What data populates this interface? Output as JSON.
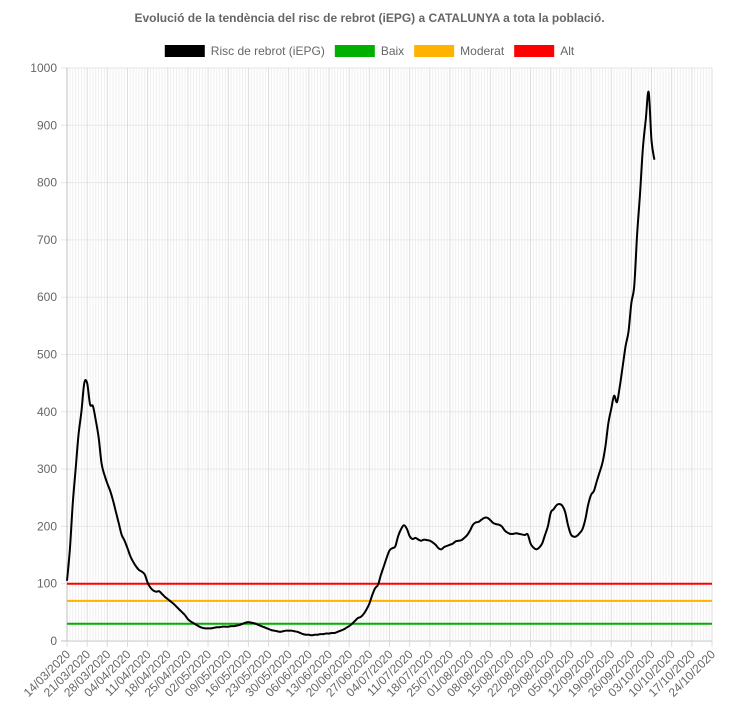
{
  "chart_data": {
    "type": "line",
    "title": "Evolució de la tendència del risc de rebrot (iEPG) a CATALUNYA a tota la població.",
    "xlabel": "",
    "ylabel": "",
    "ylim": [
      0,
      1000
    ],
    "yticks": [
      0,
      100,
      200,
      300,
      400,
      500,
      600,
      700,
      800,
      900,
      1000
    ],
    "x_tick_labels": [
      "14/03/2020",
      "21/03/2020",
      "28/03/2020",
      "04/04/2020",
      "11/04/2020",
      "18/04/2020",
      "25/04/2020",
      "02/05/2020",
      "09/05/2020",
      "16/05/2020",
      "23/05/2020",
      "30/05/2020",
      "06/06/2020",
      "13/06/2020",
      "20/06/2020",
      "27/06/2020",
      "04/07/2020",
      "11/07/2020",
      "18/07/2020",
      "25/07/2020",
      "01/08/2020",
      "08/08/2020",
      "15/08/2020",
      "22/08/2020",
      "29/08/2020",
      "05/09/2020",
      "12/09/2020",
      "19/09/2020",
      "26/09/2020",
      "03/10/2020",
      "10/10/2020",
      "17/10/2020",
      "24/10/2020"
    ],
    "x_start": "14/03/2020",
    "x_end": "24/10/2020",
    "grid": true,
    "legend_position": "top",
    "series": [
      {
        "name": "Risc de rebrot (iEPG)",
        "color": "#000000",
        "points": [
          [
            "14/03/2020",
            105
          ],
          [
            "15/03/2020",
            160
          ],
          [
            "16/03/2020",
            240
          ],
          [
            "17/03/2020",
            300
          ],
          [
            "18/03/2020",
            360
          ],
          [
            "19/03/2020",
            400
          ],
          [
            "20/03/2020",
            450
          ],
          [
            "21/03/2020",
            450
          ],
          [
            "22/03/2020",
            413
          ],
          [
            "23/03/2020",
            410
          ],
          [
            "24/03/2020",
            385
          ],
          [
            "25/03/2020",
            355
          ],
          [
            "26/03/2020",
            310
          ],
          [
            "27/03/2020",
            290
          ],
          [
            "28/03/2020",
            275
          ],
          [
            "29/03/2020",
            262
          ],
          [
            "30/03/2020",
            245
          ],
          [
            "31/03/2020",
            225
          ],
          [
            "01/04/2020",
            205
          ],
          [
            "02/04/2020",
            185
          ],
          [
            "03/04/2020",
            175
          ],
          [
            "04/04/2020",
            162
          ],
          [
            "05/04/2020",
            148
          ],
          [
            "06/04/2020",
            138
          ],
          [
            "07/04/2020",
            130
          ],
          [
            "08/04/2020",
            124
          ],
          [
            "09/04/2020",
            121
          ],
          [
            "10/04/2020",
            116
          ],
          [
            "11/04/2020",
            102
          ],
          [
            "12/04/2020",
            93
          ],
          [
            "13/04/2020",
            88
          ],
          [
            "14/04/2020",
            86
          ],
          [
            "15/04/2020",
            87
          ],
          [
            "16/04/2020",
            82
          ],
          [
            "17/04/2020",
            77
          ],
          [
            "18/04/2020",
            73
          ],
          [
            "19/04/2020",
            69
          ],
          [
            "20/04/2020",
            65
          ],
          [
            "21/04/2020",
            60
          ],
          [
            "22/04/2020",
            55
          ],
          [
            "23/04/2020",
            50
          ],
          [
            "24/04/2020",
            45
          ],
          [
            "25/04/2020",
            38
          ],
          [
            "26/04/2020",
            34
          ],
          [
            "27/04/2020",
            31
          ],
          [
            "28/04/2020",
            28
          ],
          [
            "29/04/2020",
            25
          ],
          [
            "30/04/2020",
            23
          ],
          [
            "01/05/2020",
            22
          ],
          [
            "02/05/2020",
            22
          ],
          [
            "03/05/2020",
            22
          ],
          [
            "04/05/2020",
            23
          ],
          [
            "05/05/2020",
            24
          ],
          [
            "06/05/2020",
            24
          ],
          [
            "07/05/2020",
            25
          ],
          [
            "08/05/2020",
            25
          ],
          [
            "09/05/2020",
            25
          ],
          [
            "10/05/2020",
            26
          ],
          [
            "11/05/2020",
            26
          ],
          [
            "12/05/2020",
            27
          ],
          [
            "13/05/2020",
            28
          ],
          [
            "14/05/2020",
            30
          ],
          [
            "15/05/2020",
            32
          ],
          [
            "16/05/2020",
            33
          ],
          [
            "17/05/2020",
            32
          ],
          [
            "18/05/2020",
            31
          ],
          [
            "19/05/2020",
            29
          ],
          [
            "20/05/2020",
            27
          ],
          [
            "21/05/2020",
            25
          ],
          [
            "22/05/2020",
            23
          ],
          [
            "23/05/2020",
            21
          ],
          [
            "24/05/2020",
            19
          ],
          [
            "25/05/2020",
            18
          ],
          [
            "26/05/2020",
            17
          ],
          [
            "27/05/2020",
            16
          ],
          [
            "28/05/2020",
            17
          ],
          [
            "29/05/2020",
            18
          ],
          [
            "30/05/2020",
            18
          ],
          [
            "31/05/2020",
            18
          ],
          [
            "01/06/2020",
            17
          ],
          [
            "02/06/2020",
            16
          ],
          [
            "03/06/2020",
            14
          ],
          [
            "04/06/2020",
            12
          ],
          [
            "05/06/2020",
            11
          ],
          [
            "06/06/2020",
            11
          ],
          [
            "07/06/2020",
            10
          ],
          [
            "08/06/2020",
            11
          ],
          [
            "09/06/2020",
            11
          ],
          [
            "10/06/2020",
            12
          ],
          [
            "11/06/2020",
            12
          ],
          [
            "12/06/2020",
            13
          ],
          [
            "13/06/2020",
            13
          ],
          [
            "14/06/2020",
            14
          ],
          [
            "15/06/2020",
            14
          ],
          [
            "16/06/2020",
            16
          ],
          [
            "17/06/2020",
            18
          ],
          [
            "18/06/2020",
            20
          ],
          [
            "19/06/2020",
            23
          ],
          [
            "20/06/2020",
            26
          ],
          [
            "21/06/2020",
            30
          ],
          [
            "22/06/2020",
            35
          ],
          [
            "23/06/2020",
            40
          ],
          [
            "24/06/2020",
            42
          ],
          [
            "25/06/2020",
            47
          ],
          [
            "26/06/2020",
            55
          ],
          [
            "27/06/2020",
            65
          ],
          [
            "28/06/2020",
            80
          ],
          [
            "29/06/2020",
            92
          ],
          [
            "30/06/2020",
            98
          ],
          [
            "01/07/2020",
            115
          ],
          [
            "02/07/2020",
            130
          ],
          [
            "03/07/2020",
            145
          ],
          [
            "04/07/2020",
            158
          ],
          [
            "05/07/2020",
            162
          ],
          [
            "06/07/2020",
            165
          ],
          [
            "07/07/2020",
            183
          ],
          [
            "08/07/2020",
            195
          ],
          [
            "09/07/2020",
            202
          ],
          [
            "10/07/2020",
            196
          ],
          [
            "11/07/2020",
            183
          ],
          [
            "12/07/2020",
            178
          ],
          [
            "13/07/2020",
            180
          ],
          [
            "14/07/2020",
            177
          ],
          [
            "15/07/2020",
            175
          ],
          [
            "16/07/2020",
            177
          ],
          [
            "17/07/2020",
            176
          ],
          [
            "18/07/2020",
            175
          ],
          [
            "19/07/2020",
            172
          ],
          [
            "20/07/2020",
            168
          ],
          [
            "21/07/2020",
            162
          ],
          [
            "22/07/2020",
            160
          ],
          [
            "23/07/2020",
            164
          ],
          [
            "24/07/2020",
            166
          ],
          [
            "25/07/2020",
            168
          ],
          [
            "26/07/2020",
            170
          ],
          [
            "27/07/2020",
            174
          ],
          [
            "28/07/2020",
            175
          ],
          [
            "29/07/2020",
            176
          ],
          [
            "30/07/2020",
            180
          ],
          [
            "31/07/2020",
            185
          ],
          [
            "01/08/2020",
            193
          ],
          [
            "02/08/2020",
            203
          ],
          [
            "03/08/2020",
            207
          ],
          [
            "04/08/2020",
            208
          ],
          [
            "05/08/2020",
            212
          ],
          [
            "06/08/2020",
            215
          ],
          [
            "07/08/2020",
            215
          ],
          [
            "08/08/2020",
            211
          ],
          [
            "09/08/2020",
            206
          ],
          [
            "10/08/2020",
            204
          ],
          [
            "11/08/2020",
            203
          ],
          [
            "12/08/2020",
            200
          ],
          [
            "13/08/2020",
            193
          ],
          [
            "14/08/2020",
            189
          ],
          [
            "15/08/2020",
            187
          ],
          [
            "16/08/2020",
            187
          ],
          [
            "17/08/2020",
            188
          ],
          [
            "18/08/2020",
            187
          ],
          [
            "19/08/2020",
            186
          ],
          [
            "20/08/2020",
            185
          ],
          [
            "21/08/2020",
            186
          ],
          [
            "22/08/2020",
            170
          ],
          [
            "23/08/2020",
            163
          ],
          [
            "24/08/2020",
            160
          ],
          [
            "25/08/2020",
            163
          ],
          [
            "26/08/2020",
            170
          ],
          [
            "27/08/2020",
            185
          ],
          [
            "28/08/2020",
            200
          ],
          [
            "29/08/2020",
            224
          ],
          [
            "30/08/2020",
            230
          ],
          [
            "31/08/2020",
            237
          ],
          [
            "01/09/2020",
            239
          ],
          [
            "02/09/2020",
            236
          ],
          [
            "03/09/2020",
            225
          ],
          [
            "04/09/2020",
            202
          ],
          [
            "05/09/2020",
            186
          ],
          [
            "06/09/2020",
            182
          ],
          [
            "07/09/2020",
            183
          ],
          [
            "08/09/2020",
            188
          ],
          [
            "09/09/2020",
            195
          ],
          [
            "10/09/2020",
            212
          ],
          [
            "11/09/2020",
            238
          ],
          [
            "12/09/2020",
            255
          ],
          [
            "13/09/2020",
            262
          ],
          [
            "14/09/2020",
            279
          ],
          [
            "15/09/2020",
            295
          ],
          [
            "16/09/2020",
            312
          ],
          [
            "17/09/2020",
            340
          ],
          [
            "18/09/2020",
            380
          ],
          [
            "19/09/2020",
            405
          ],
          [
            "20/09/2020",
            428
          ],
          [
            "21/09/2020",
            417
          ],
          [
            "22/09/2020",
            445
          ],
          [
            "23/09/2020",
            480
          ],
          [
            "24/09/2020",
            515
          ],
          [
            "25/09/2020",
            540
          ],
          [
            "26/09/2020",
            590
          ],
          [
            "27/09/2020",
            620
          ],
          [
            "28/09/2020",
            710
          ],
          [
            "29/09/2020",
            780
          ],
          [
            "30/09/2020",
            860
          ],
          [
            "01/10/2020",
            910
          ],
          [
            "02/10/2020",
            958
          ],
          [
            "03/10/2020",
            873
          ],
          [
            "04/10/2020",
            840
          ]
        ]
      },
      {
        "name": "Baix",
        "color": "#00b000",
        "constant": 30
      },
      {
        "name": "Moderat",
        "color": "#ffb300",
        "constant": 70
      },
      {
        "name": "Alt",
        "color": "#ff0000",
        "constant": 100
      }
    ]
  }
}
